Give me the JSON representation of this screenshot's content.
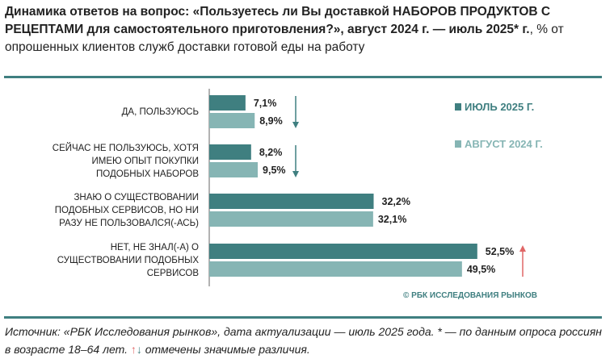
{
  "title": {
    "bold": "Динамика ответов на вопрос: «Пользуетесь ли Вы доставкой НАБОРОВ ПРОДУКТОВ С РЕЦЕПТАМИ для самостоятельного приготовления?», август 2024 г. — июль 2025* г.",
    "rest": ", % от опрошенных клиентов служб доставки готовой еды на работу"
  },
  "chart_data": {
    "type": "bar",
    "orientation": "horizontal",
    "categories": [
      [
        "ДА, ПОЛЬЗУЮСЬ"
      ],
      [
        "СЕЙЧАС НЕ ПОЛЬЗУЮСЬ, ХОТЯ",
        "ИМЕЮ ОПЫТ ПОКУПКИ",
        "ПОДОБНЫХ НАБОРОВ"
      ],
      [
        "ЗНАЮ О СУЩЕСТВОВАНИИ",
        "ПОДОБНЫХ СЕРВИСОВ, НО НИ",
        "РАЗУ НЕ ПОЛЬЗОВАЛСЯ(-АСЬ)"
      ],
      [
        "НЕТ, НЕ ЗНАЛ(-А) О",
        "СУЩЕСТВОВАНИИ ПОДОБНЫХ",
        "СЕРВИСОВ"
      ]
    ],
    "series": [
      {
        "name": "ИЮЛЬ 2025 Г.",
        "color": "#3f7f80",
        "values": [
          7.1,
          8.2,
          32.2,
          52.5
        ],
        "labels": [
          "7,1%",
          "8,2%",
          "32,2%",
          "52,5%"
        ]
      },
      {
        "name": "АВГУСТ 2024 Г.",
        "color": "#86b5b4",
        "values": [
          8.9,
          9.5,
          32.1,
          49.5
        ],
        "labels": [
          "8,9%",
          "9,5%",
          "32,1%",
          "49,5%"
        ]
      }
    ],
    "significance": [
      "down",
      "down",
      "none",
      "up"
    ],
    "legend_position": "right",
    "xlim": [
      0,
      60
    ]
  },
  "copyright": "© РБК ИССЛЕДОВАНИЯ РЫНКОВ",
  "footer": {
    "line": "Источник: «РБК Исследования рынков», дата актуализации — июль 2025 года. * — по данным опроса россиян в возрасте 18–64 лет. ",
    "arrows_up": "↑",
    "arrows_down": "↓",
    "tail": " отмечены значимые различия."
  },
  "colors": {
    "up": "#e06767",
    "down": "#3f7f80"
  }
}
